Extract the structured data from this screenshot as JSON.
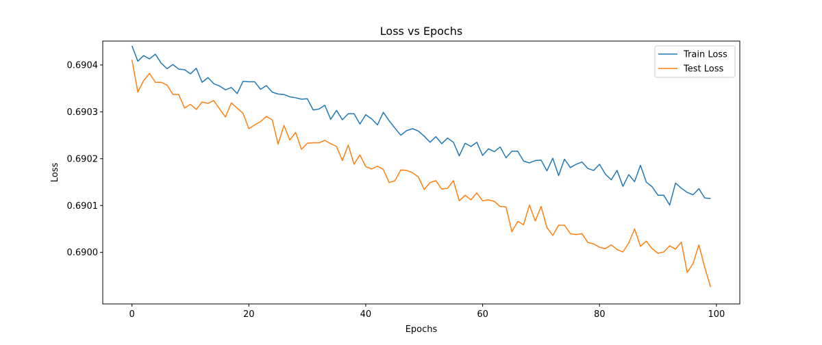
{
  "chart_data": {
    "type": "line",
    "title": "Loss vs Epochs",
    "xlabel": "Epochs",
    "ylabel": "Loss",
    "xlim": [
      -5,
      104
    ],
    "ylim": [
      0.68989,
      0.690451
    ],
    "xticks": [
      0,
      20,
      40,
      60,
      80,
      100
    ],
    "xtick_labels": [
      "0",
      "20",
      "40",
      "60",
      "80",
      "100"
    ],
    "yticks": [
      0.69,
      0.6901,
      0.6902,
      0.6903,
      0.6904
    ],
    "ytick_labels": [
      "0.6900",
      "0.6901",
      "0.6902",
      "0.6903",
      "0.6904"
    ],
    "grid": false,
    "legend_position": "top-right",
    "x": [
      0,
      1,
      2,
      3,
      4,
      5,
      6,
      7,
      8,
      9,
      10,
      11,
      12,
      13,
      14,
      15,
      16,
      17,
      18,
      19,
      20,
      21,
      22,
      23,
      24,
      25,
      26,
      27,
      28,
      29,
      30,
      31,
      32,
      33,
      34,
      35,
      36,
      37,
      38,
      39,
      40,
      41,
      42,
      43,
      44,
      45,
      46,
      47,
      48,
      49,
      50,
      51,
      52,
      53,
      54,
      55,
      56,
      57,
      58,
      59,
      60,
      61,
      62,
      63,
      64,
      65,
      66,
      67,
      68,
      69,
      70,
      71,
      72,
      73,
      74,
      75,
      76,
      77,
      78,
      79,
      80,
      81,
      82,
      83,
      84,
      85,
      86,
      87,
      88,
      89,
      90,
      91,
      92,
      93,
      94,
      95,
      96,
      97,
      98,
      99
    ],
    "series": [
      {
        "name": "Train Loss",
        "color": "#1f77b4",
        "values": [
          0.690441,
          0.690408,
          0.69042,
          0.690413,
          0.690423,
          0.690404,
          0.690392,
          0.690401,
          0.690391,
          0.69039,
          0.690381,
          0.690393,
          0.690363,
          0.690373,
          0.69036,
          0.690355,
          0.690347,
          0.690352,
          0.690339,
          0.690365,
          0.690364,
          0.690364,
          0.690348,
          0.690356,
          0.690342,
          0.690338,
          0.690337,
          0.690332,
          0.69033,
          0.690327,
          0.690328,
          0.690304,
          0.690306,
          0.690314,
          0.690284,
          0.690303,
          0.690283,
          0.690296,
          0.690296,
          0.690274,
          0.690294,
          0.690285,
          0.690272,
          0.690299,
          0.690281,
          0.690265,
          0.69025,
          0.69026,
          0.690264,
          0.690259,
          0.690248,
          0.690235,
          0.690247,
          0.690232,
          0.690244,
          0.690235,
          0.690206,
          0.690233,
          0.690226,
          0.690235,
          0.690207,
          0.690221,
          0.690215,
          0.690225,
          0.690202,
          0.690216,
          0.690216,
          0.690195,
          0.690191,
          0.690196,
          0.690197,
          0.690174,
          0.690201,
          0.690164,
          0.690199,
          0.690181,
          0.690188,
          0.690193,
          0.690179,
          0.690175,
          0.690188,
          0.690167,
          0.690155,
          0.690175,
          0.690141,
          0.690166,
          0.690151,
          0.690186,
          0.69015,
          0.69014,
          0.690122,
          0.690122,
          0.690101,
          0.690148,
          0.690137,
          0.690128,
          0.690123,
          0.690136,
          0.690116,
          0.690115
        ]
      },
      {
        "name": "Test Loss",
        "color": "#ff7f0e",
        "values": [
          0.690411,
          0.690342,
          0.690367,
          0.690382,
          0.690363,
          0.690363,
          0.690357,
          0.690337,
          0.690337,
          0.690308,
          0.690316,
          0.690305,
          0.690321,
          0.690318,
          0.690324,
          0.690306,
          0.690289,
          0.690319,
          0.690308,
          0.690297,
          0.690264,
          0.690272,
          0.690279,
          0.69029,
          0.690283,
          0.690231,
          0.690271,
          0.69024,
          0.690256,
          0.69022,
          0.690233,
          0.690234,
          0.690234,
          0.690239,
          0.690232,
          0.690226,
          0.690196,
          0.690229,
          0.690188,
          0.690208,
          0.690183,
          0.690178,
          0.690184,
          0.690177,
          0.690149,
          0.690153,
          0.690176,
          0.690175,
          0.69017,
          0.690161,
          0.690134,
          0.690149,
          0.690153,
          0.690135,
          0.690137,
          0.690153,
          0.69011,
          0.690122,
          0.690112,
          0.690127,
          0.69011,
          0.690112,
          0.690109,
          0.690098,
          0.690097,
          0.690044,
          0.690066,
          0.690059,
          0.690101,
          0.690067,
          0.690098,
          0.690053,
          0.690036,
          0.690058,
          0.690058,
          0.69004,
          0.690038,
          0.69004,
          0.690021,
          0.690018,
          0.690011,
          0.690008,
          0.690016,
          0.690006,
          0.690001,
          0.69002,
          0.69005,
          0.690013,
          0.690024,
          0.690008,
          0.689998,
          0.690001,
          0.690014,
          0.690007,
          0.690022,
          0.689957,
          0.689976,
          0.690016,
          0.689968,
          0.689926
        ]
      }
    ]
  }
}
